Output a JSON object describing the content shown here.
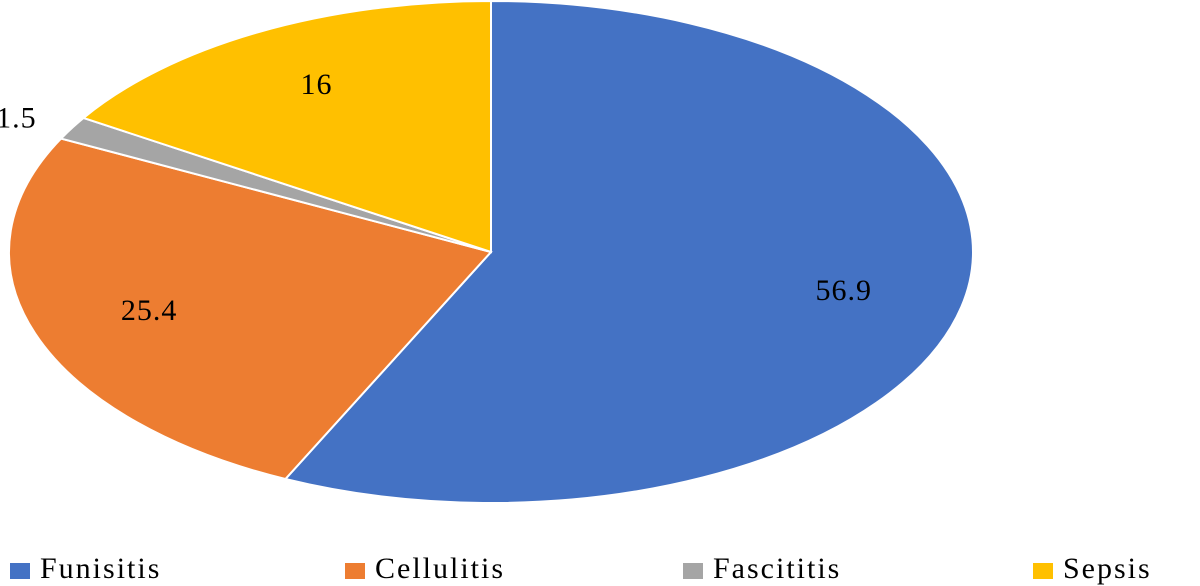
{
  "chart_data": {
    "type": "pie",
    "categories": [
      "Funisitis",
      "Cellulitis",
      "Fascititis",
      "Sepsis"
    ],
    "values": [
      56.9,
      25.4,
      1.5,
      16
    ],
    "colors": [
      "#4472c4",
      "#ed7d31",
      "#a5a5a5",
      "#ffc000"
    ],
    "legend": "bottom"
  }
}
